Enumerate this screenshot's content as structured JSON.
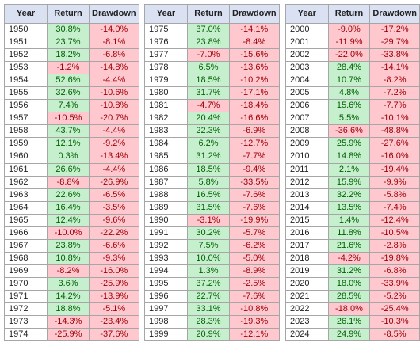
{
  "headers": {
    "year": "Year",
    "return": "Return",
    "drawdown": "Drawdown"
  },
  "tables": [
    {
      "rows": [
        {
          "year": "1950",
          "return": "30.8%",
          "drawdown": "-14.0%"
        },
        {
          "year": "1951",
          "return": "23.7%",
          "drawdown": "-8.1%"
        },
        {
          "year": "1952",
          "return": "18.2%",
          "drawdown": "-6.8%"
        },
        {
          "year": "1953",
          "return": "-1.2%",
          "drawdown": "-14.8%"
        },
        {
          "year": "1954",
          "return": "52.6%",
          "drawdown": "-4.4%"
        },
        {
          "year": "1955",
          "return": "32.6%",
          "drawdown": "-10.6%"
        },
        {
          "year": "1956",
          "return": "7.4%",
          "drawdown": "-10.8%"
        },
        {
          "year": "1957",
          "return": "-10.5%",
          "drawdown": "-20.7%"
        },
        {
          "year": "1958",
          "return": "43.7%",
          "drawdown": "-4.4%"
        },
        {
          "year": "1959",
          "return": "12.1%",
          "drawdown": "-9.2%"
        },
        {
          "year": "1960",
          "return": "0.3%",
          "drawdown": "-13.4%"
        },
        {
          "year": "1961",
          "return": "26.6%",
          "drawdown": "-4.4%"
        },
        {
          "year": "1962",
          "return": "-8.8%",
          "drawdown": "-26.9%"
        },
        {
          "year": "1963",
          "return": "22.6%",
          "drawdown": "-6.5%"
        },
        {
          "year": "1964",
          "return": "16.4%",
          "drawdown": "-3.5%"
        },
        {
          "year": "1965",
          "return": "12.4%",
          "drawdown": "-9.6%"
        },
        {
          "year": "1966",
          "return": "-10.0%",
          "drawdown": "-22.2%"
        },
        {
          "year": "1967",
          "return": "23.8%",
          "drawdown": "-6.6%"
        },
        {
          "year": "1968",
          "return": "10.8%",
          "drawdown": "-9.3%"
        },
        {
          "year": "1969",
          "return": "-8.2%",
          "drawdown": "-16.0%"
        },
        {
          "year": "1970",
          "return": "3.6%",
          "drawdown": "-25.9%"
        },
        {
          "year": "1971",
          "return": "14.2%",
          "drawdown": "-13.9%"
        },
        {
          "year": "1972",
          "return": "18.8%",
          "drawdown": "-5.1%"
        },
        {
          "year": "1973",
          "return": "-14.3%",
          "drawdown": "-23.4%"
        },
        {
          "year": "1974",
          "return": "-25.9%",
          "drawdown": "-37.6%"
        }
      ]
    },
    {
      "rows": [
        {
          "year": "1975",
          "return": "37.0%",
          "drawdown": "-14.1%"
        },
        {
          "year": "1976",
          "return": "23.8%",
          "drawdown": "-8.4%"
        },
        {
          "year": "1977",
          "return": "-7.0%",
          "drawdown": "-15.6%"
        },
        {
          "year": "1978",
          "return": "6.5%",
          "drawdown": "-13.6%"
        },
        {
          "year": "1979",
          "return": "18.5%",
          "drawdown": "-10.2%"
        },
        {
          "year": "1980",
          "return": "31.7%",
          "drawdown": "-17.1%"
        },
        {
          "year": "1981",
          "return": "-4.7%",
          "drawdown": "-18.4%"
        },
        {
          "year": "1982",
          "return": "20.4%",
          "drawdown": "-16.6%"
        },
        {
          "year": "1983",
          "return": "22.3%",
          "drawdown": "-6.9%"
        },
        {
          "year": "1984",
          "return": "6.2%",
          "drawdown": "-12.7%"
        },
        {
          "year": "1985",
          "return": "31.2%",
          "drawdown": "-7.7%"
        },
        {
          "year": "1986",
          "return": "18.5%",
          "drawdown": "-9.4%"
        },
        {
          "year": "1987",
          "return": "5.8%",
          "drawdown": "-33.5%"
        },
        {
          "year": "1988",
          "return": "16.5%",
          "drawdown": "-7.6%"
        },
        {
          "year": "1989",
          "return": "31.5%",
          "drawdown": "-7.6%"
        },
        {
          "year": "1990",
          "return": "-3.1%",
          "drawdown": "-19.9%"
        },
        {
          "year": "1991",
          "return": "30.2%",
          "drawdown": "-5.7%"
        },
        {
          "year": "1992",
          "return": "7.5%",
          "drawdown": "-6.2%"
        },
        {
          "year": "1993",
          "return": "10.0%",
          "drawdown": "-5.0%"
        },
        {
          "year": "1994",
          "return": "1.3%",
          "drawdown": "-8.9%"
        },
        {
          "year": "1995",
          "return": "37.2%",
          "drawdown": "-2.5%"
        },
        {
          "year": "1996",
          "return": "22.7%",
          "drawdown": "-7.6%"
        },
        {
          "year": "1997",
          "return": "33.1%",
          "drawdown": "-10.8%"
        },
        {
          "year": "1998",
          "return": "28.3%",
          "drawdown": "-19.3%"
        },
        {
          "year": "1999",
          "return": "20.9%",
          "drawdown": "-12.1%"
        }
      ]
    },
    {
      "rows": [
        {
          "year": "2000",
          "return": "-9.0%",
          "drawdown": "-17.2%"
        },
        {
          "year": "2001",
          "return": "-11.9%",
          "drawdown": "-29.7%"
        },
        {
          "year": "2002",
          "return": "-22.0%",
          "drawdown": "-33.8%"
        },
        {
          "year": "2003",
          "return": "28.4%",
          "drawdown": "-14.1%"
        },
        {
          "year": "2004",
          "return": "10.7%",
          "drawdown": "-8.2%"
        },
        {
          "year": "2005",
          "return": "4.8%",
          "drawdown": "-7.2%"
        },
        {
          "year": "2006",
          "return": "15.6%",
          "drawdown": "-7.7%"
        },
        {
          "year": "2007",
          "return": "5.5%",
          "drawdown": "-10.1%"
        },
        {
          "year": "2008",
          "return": "-36.6%",
          "drawdown": "-48.8%"
        },
        {
          "year": "2009",
          "return": "25.9%",
          "drawdown": "-27.6%"
        },
        {
          "year": "2010",
          "return": "14.8%",
          "drawdown": "-16.0%"
        },
        {
          "year": "2011",
          "return": "2.1%",
          "drawdown": "-19.4%"
        },
        {
          "year": "2012",
          "return": "15.9%",
          "drawdown": "-9.9%"
        },
        {
          "year": "2013",
          "return": "32.2%",
          "drawdown": "-5.8%"
        },
        {
          "year": "2014",
          "return": "13.5%",
          "drawdown": "-7.4%"
        },
        {
          "year": "2015",
          "return": "1.4%",
          "drawdown": "-12.4%"
        },
        {
          "year": "2016",
          "return": "11.8%",
          "drawdown": "-10.5%"
        },
        {
          "year": "2017",
          "return": "21.6%",
          "drawdown": "-2.8%"
        },
        {
          "year": "2018",
          "return": "-4.2%",
          "drawdown": "-19.8%"
        },
        {
          "year": "2019",
          "return": "31.2%",
          "drawdown": "-6.8%"
        },
        {
          "year": "2020",
          "return": "18.0%",
          "drawdown": "-33.9%"
        },
        {
          "year": "2021",
          "return": "28.5%",
          "drawdown": "-5.2%"
        },
        {
          "year": "2022",
          "return": "-18.0%",
          "drawdown": "-25.4%"
        },
        {
          "year": "2023",
          "return": "26.1%",
          "drawdown": "-10.3%"
        },
        {
          "year": "2024",
          "return": "24.9%",
          "drawdown": "-8.5%"
        }
      ]
    }
  ],
  "colors": {
    "positive_fill": "#c6efce",
    "negative_fill": "#ffc7ce",
    "header_fill": "#d9e1f2"
  }
}
